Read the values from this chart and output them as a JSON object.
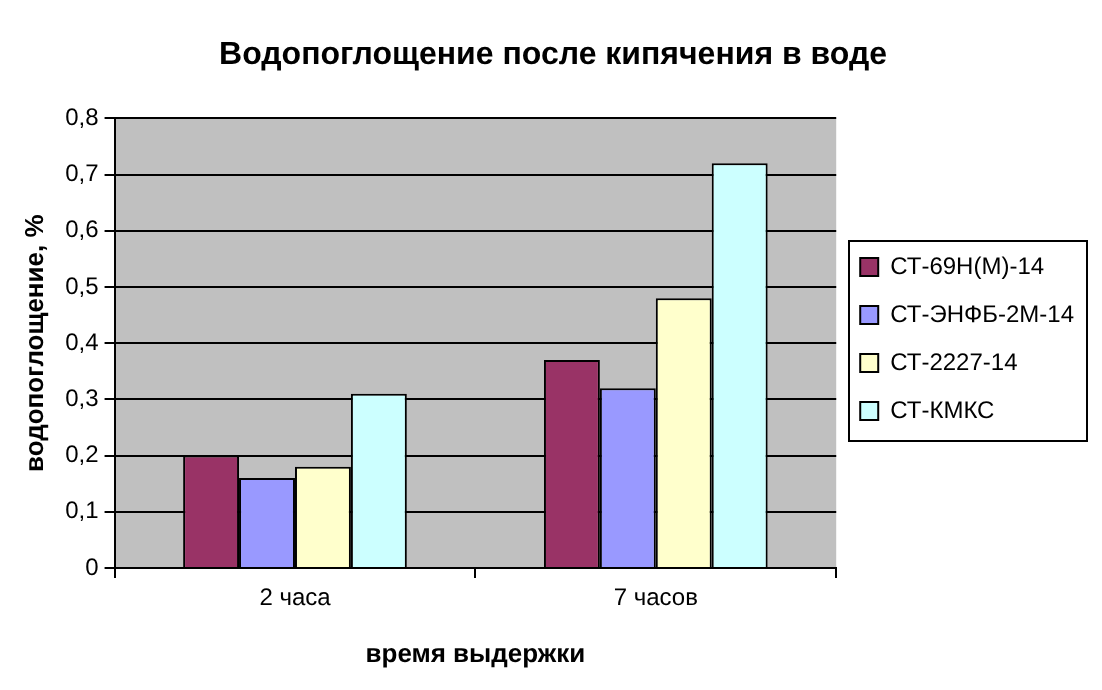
{
  "chart_data": {
    "type": "bar",
    "title": "Водопоглощение после кипячения в воде",
    "xlabel": "время выдержки",
    "ylabel": "водопоглощение, %",
    "categories": [
      "2 часа",
      "7 часов"
    ],
    "series": [
      {
        "name": "СТ-69Н(М)-14",
        "color": "#993366",
        "values": [
          0.2,
          0.37
        ]
      },
      {
        "name": "СТ-ЭНФБ-2М-14",
        "color": "#9999ff",
        "values": [
          0.16,
          0.32
        ]
      },
      {
        "name": "СТ-2227-14",
        "color": "#ffffcc",
        "values": [
          0.18,
          0.48
        ]
      },
      {
        "name": "СТ-КМКС",
        "color": "#ccffff",
        "values": [
          0.31,
          0.72
        ]
      }
    ],
    "ylim": [
      0,
      0.8
    ],
    "yticks": [
      0,
      {
        "value": 0.1,
        "label": "0,1"
      },
      {
        "value": 0.2,
        "label": "0,2"
      },
      {
        "value": 0.3,
        "label": "0,3"
      },
      {
        "value": 0.4,
        "label": "0,4"
      },
      {
        "value": 0.5,
        "label": "0,5"
      },
      {
        "value": 0.6,
        "label": "0,6"
      },
      {
        "value": 0.7,
        "label": "0,7"
      },
      {
        "value": 0.8,
        "label": "0,8"
      }
    ],
    "grid": "y",
    "legend": "right"
  }
}
